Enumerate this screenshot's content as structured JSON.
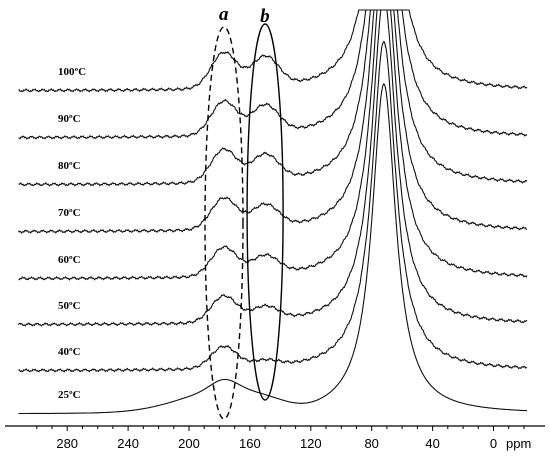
{
  "chart_data": {
    "type": "line",
    "title": "",
    "xlabel": "ppm",
    "ylabel": "",
    "xlim": [
      310,
      -20
    ],
    "x_reversed": true,
    "grid": false,
    "x_ticks": [
      280,
      240,
      200,
      160,
      120,
      80,
      40,
      0
    ],
    "x_tick_labels": [
      "280",
      "240",
      "200",
      "160",
      "120",
      "80",
      "40",
      "0"
    ],
    "regions": [
      {
        "label": "a",
        "center_ppm": 177,
        "style": "dashed"
      },
      {
        "label": "b",
        "center_ppm": 150,
        "style": "solid"
      }
    ],
    "series": [
      {
        "label": "25ºC",
        "peak_a": 0.18,
        "peak_b": 0.0,
        "main_peak_ppm": 72
      },
      {
        "label": "40ºC",
        "peak_a": 0.4,
        "peak_b": 0.12,
        "main_peak_ppm": 72
      },
      {
        "label": "50ºC",
        "peak_a": 0.48,
        "peak_b": 0.26,
        "main_peak_ppm": 72
      },
      {
        "label": "60ºC",
        "peak_a": 0.53,
        "peak_b": 0.35,
        "main_peak_ppm": 72
      },
      {
        "label": "70ºC",
        "peak_a": 0.57,
        "peak_b": 0.42,
        "main_peak_ppm": 72
      },
      {
        "label": "80ºC",
        "peak_a": 0.6,
        "peak_b": 0.48,
        "main_peak_ppm": 72
      },
      {
        "label": "90ºC",
        "peak_a": 0.62,
        "peak_b": 0.52,
        "main_peak_ppm": 72
      },
      {
        "label": "100ºC",
        "peak_a": 0.65,
        "peak_b": 0.55,
        "main_peak_ppm": 72
      }
    ]
  }
}
